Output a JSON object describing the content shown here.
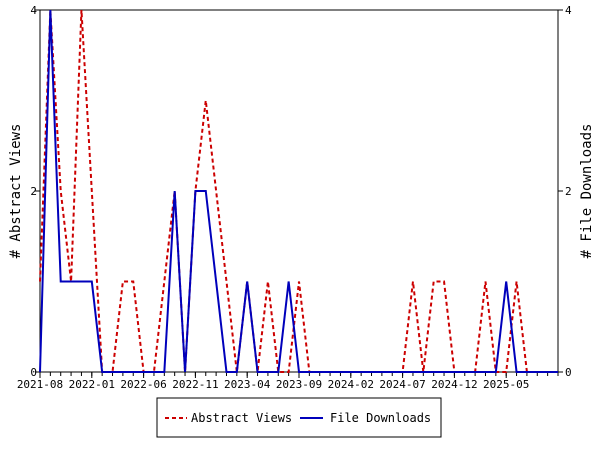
{
  "chart_data": {
    "type": "line",
    "x_count": 51,
    "x_tick_labels": [
      "2021-08",
      "2022-01",
      "2022-06",
      "2022-11",
      "2023-04",
      "2023-09",
      "2024-02",
      "2024-07",
      "2024-12",
      "2025-05"
    ],
    "x_tick_positions": [
      0,
      5,
      10,
      15,
      20,
      25,
      30,
      35,
      40,
      45
    ],
    "left_axis": {
      "label": "# Abstract Views",
      "range": [
        0,
        4
      ],
      "ticks": [
        0,
        2,
        4
      ]
    },
    "right_axis": {
      "label": "# File Downloads",
      "range": [
        0,
        4
      ],
      "ticks": [
        0,
        2,
        4
      ]
    },
    "legend_position": "bottom-center",
    "series": [
      {
        "name": "Abstract Views",
        "axis": "left",
        "color": "#cc0000",
        "style": "dashed",
        "values": [
          1,
          4,
          2,
          1,
          4,
          2,
          0,
          0,
          1,
          1,
          0,
          0,
          1,
          2,
          0,
          2,
          3,
          2,
          1,
          0,
          1,
          0,
          1,
          0,
          0,
          1,
          0,
          0,
          0,
          0,
          0,
          0,
          0,
          0,
          0,
          0,
          1,
          0,
          1,
          1,
          0,
          0,
          0,
          1,
          0,
          0,
          1,
          0,
          0,
          0,
          0
        ]
      },
      {
        "name": "File Downloads",
        "axis": "right",
        "color": "#0000bb",
        "style": "solid",
        "values": [
          0,
          4,
          1,
          1,
          1,
          1,
          0,
          0,
          0,
          0,
          0,
          0,
          0,
          2,
          0,
          2,
          2,
          1,
          0,
          0,
          1,
          0,
          0,
          0,
          1,
          0,
          0,
          0,
          0,
          0,
          0,
          0,
          0,
          0,
          0,
          0,
          0,
          0,
          0,
          0,
          0,
          0,
          0,
          0,
          0,
          1,
          0,
          0,
          0,
          0,
          0
        ]
      }
    ]
  }
}
